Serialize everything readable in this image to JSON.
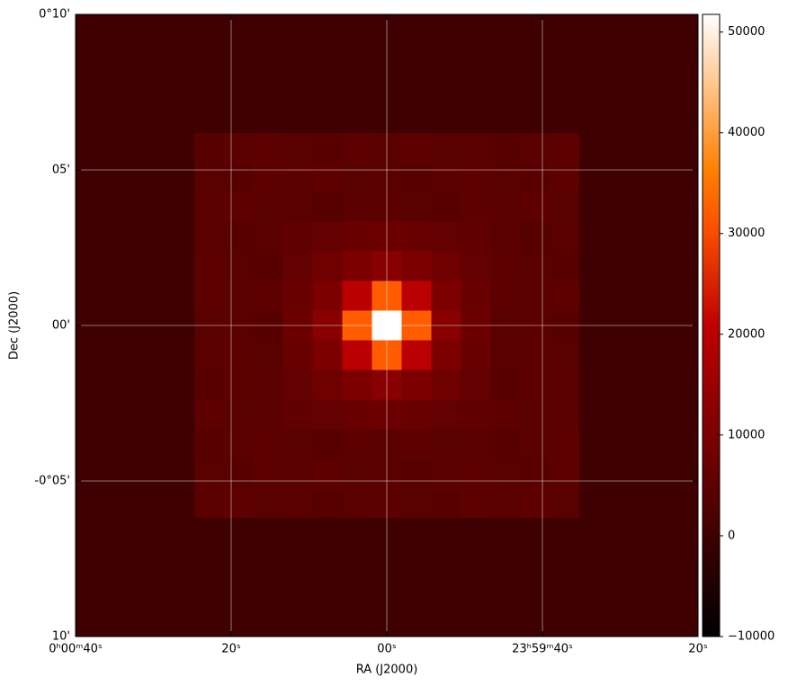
{
  "chart_data": {
    "type": "image",
    "xlabel": "RA (J2000)",
    "ylabel": "Dec (J2000)",
    "xlim": [
      40,
      -40
    ],
    "ylim": [
      -10,
      10
    ],
    "xticks": [
      {
        "value": 40,
        "label": "0ʰ00ᵐ40ˢ"
      },
      {
        "value": 20,
        "label": "20ˢ"
      },
      {
        "value": 0,
        "label": "00ˢ"
      },
      {
        "value": -20,
        "label": "23ʰ59ᵐ40ˢ"
      },
      {
        "value": -40,
        "label": "20ˢ"
      }
    ],
    "yticks": [
      {
        "value": 10,
        "label": "0°10'"
      },
      {
        "value": 5,
        "label": "05'"
      },
      {
        "value": 0,
        "label": "00'"
      },
      {
        "value": -5,
        "label": "-0°05'"
      },
      {
        "value": -10,
        "label": "10'"
      }
    ],
    "grid": true,
    "colormap": "gist_heat",
    "clim": [
      -10000,
      51750
    ],
    "cticks": [
      {
        "value": -10000,
        "label": "−10000"
      },
      0,
      10000,
      20000,
      30000,
      40000,
      50000
    ],
    "image": [
      [
        0,
        0,
        0,
        0,
        0,
        0,
        0,
        0,
        0,
        0,
        0,
        0,
        0,
        0,
        0,
        0,
        0,
        0,
        0,
        0,
        0
      ],
      [
        0,
        0,
        0,
        0,
        0,
        0,
        0,
        0,
        0,
        0,
        0,
        0,
        0,
        0,
        0,
        0,
        0,
        0,
        0,
        0,
        0
      ],
      [
        0,
        0,
        0,
        0,
        0,
        0,
        0,
        0,
        0,
        0,
        0,
        0,
        0,
        0,
        0,
        0,
        0,
        0,
        0,
        0,
        0
      ],
      [
        0,
        0,
        0,
        0,
        0,
        0,
        0,
        0,
        0,
        0,
        0,
        0,
        0,
        0,
        0,
        0,
        0,
        0,
        0,
        0,
        0
      ],
      [
        0,
        0,
        0,
        0,
        4000,
        4600,
        4900,
        4400,
        4200,
        4800,
        4500,
        5100,
        4300,
        4700,
        4000,
        4600,
        4900,
        0,
        0,
        0,
        0
      ],
      [
        0,
        0,
        0,
        0,
        4400,
        4200,
        4800,
        4500,
        5100,
        4300,
        4700,
        4000,
        4600,
        4900,
        4400,
        4200,
        4800,
        0,
        0,
        0,
        0
      ],
      [
        0,
        0,
        0,
        0,
        4500,
        5100,
        4300,
        4700,
        4000,
        4600,
        4900,
        4400,
        4200,
        4800,
        4500,
        5100,
        4300,
        0,
        0,
        0,
        0
      ],
      [
        0,
        0,
        0,
        0,
        4700,
        4000,
        4600,
        5500,
        6000,
        7000,
        7500,
        7000,
        6000,
        5500,
        4700,
        4000,
        4600,
        0,
        0,
        0,
        0
      ],
      [
        0,
        0,
        0,
        0,
        4900,
        4400,
        4200,
        6000,
        8000,
        10000,
        12000,
        10000,
        8000,
        6000,
        4900,
        4400,
        4200,
        0,
        0,
        0,
        0
      ],
      [
        0,
        0,
        0,
        0,
        4800,
        4500,
        5100,
        7000,
        10000,
        20000,
        32000,
        20000,
        10000,
        7000,
        4800,
        4500,
        5100,
        0,
        0,
        0,
        0
      ],
      [
        0,
        0,
        0,
        0,
        4300,
        4700,
        4000,
        7500,
        12000,
        32000,
        52000,
        32000,
        12000,
        7500,
        4300,
        4700,
        4000,
        0,
        0,
        0,
        0
      ],
      [
        0,
        0,
        0,
        0,
        4600,
        4900,
        4400,
        7000,
        10000,
        20000,
        32000,
        20000,
        10000,
        7000,
        4600,
        4900,
        4400,
        0,
        0,
        0,
        0
      ],
      [
        0,
        0,
        0,
        0,
        4200,
        4800,
        4500,
        6000,
        8000,
        10000,
        12000,
        10000,
        8000,
        6000,
        4200,
        4800,
        4500,
        0,
        0,
        0,
        0
      ],
      [
        0,
        0,
        0,
        0,
        5100,
        4300,
        4700,
        5500,
        6000,
        7000,
        7500,
        7000,
        6000,
        5500,
        5100,
        4300,
        4700,
        0,
        0,
        0,
        0
      ],
      [
        0,
        0,
        0,
        0,
        4000,
        4600,
        4900,
        4400,
        4200,
        4800,
        4500,
        5100,
        4300,
        4700,
        4000,
        4600,
        4900,
        0,
        0,
        0,
        0
      ],
      [
        0,
        0,
        0,
        0,
        4400,
        4200,
        4800,
        4500,
        5100,
        4300,
        4700,
        4000,
        4600,
        4900,
        4400,
        4200,
        4800,
        0,
        0,
        0,
        0
      ],
      [
        0,
        0,
        0,
        0,
        4500,
        5100,
        4300,
        4700,
        4000,
        4600,
        4900,
        4400,
        4200,
        4800,
        4500,
        5100,
        4300,
        0,
        0,
        0,
        0
      ],
      [
        0,
        0,
        0,
        0,
        0,
        0,
        0,
        0,
        0,
        0,
        0,
        0,
        0,
        0,
        0,
        0,
        0,
        0,
        0,
        0,
        0
      ],
      [
        0,
        0,
        0,
        0,
        0,
        0,
        0,
        0,
        0,
        0,
        0,
        0,
        0,
        0,
        0,
        0,
        0,
        0,
        0,
        0,
        0
      ],
      [
        0,
        0,
        0,
        0,
        0,
        0,
        0,
        0,
        0,
        0,
        0,
        0,
        0,
        0,
        0,
        0,
        0,
        0,
        0,
        0,
        0
      ],
      [
        0,
        0,
        0,
        0,
        0,
        0,
        0,
        0,
        0,
        0,
        0,
        0,
        0,
        0,
        0,
        0,
        0,
        0,
        0,
        0,
        0
      ]
    ]
  }
}
